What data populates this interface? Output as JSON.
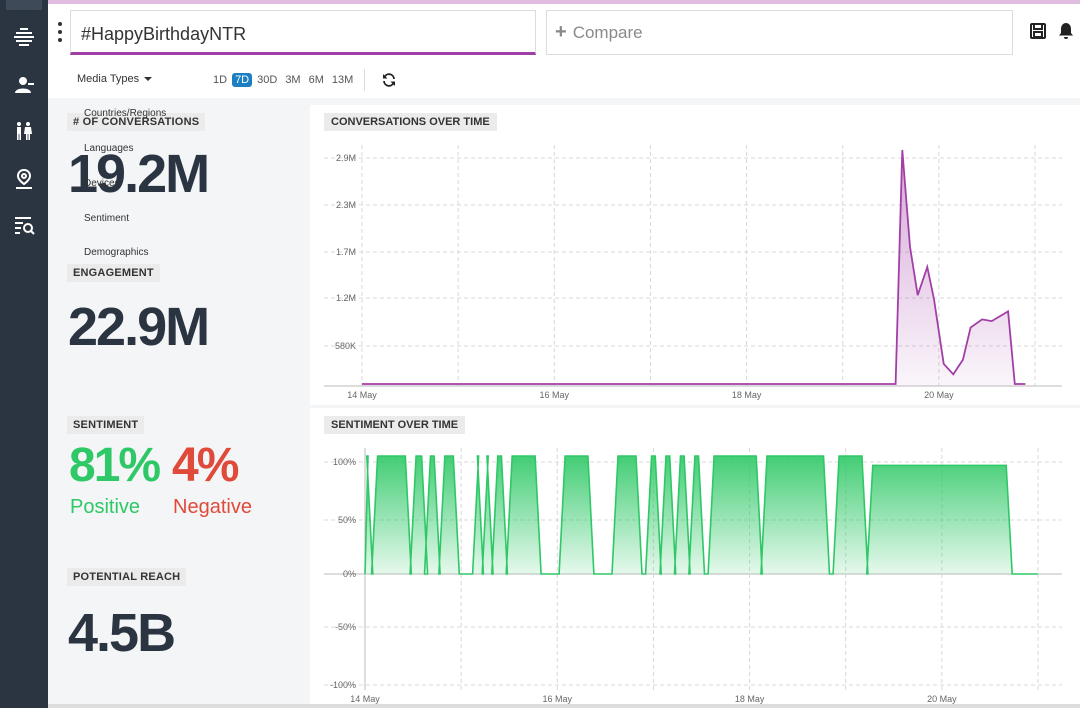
{
  "search": {
    "query": "#HappyBirthdayNTR"
  },
  "compare": {
    "label": "Compare"
  },
  "toolbar": {
    "media_types": "Media Types",
    "ranges": [
      "1D",
      "7D",
      "30D",
      "3M",
      "6M",
      "13M"
    ],
    "active_range": "7D"
  },
  "dropdown_options": [
    "Countries/Regions",
    "Languages",
    "Devices",
    "Sentiment",
    "Demographics"
  ],
  "stats": {
    "conversations": {
      "label": "# OF CONVERSATIONS",
      "value": "19.2M"
    },
    "engagement": {
      "label": "ENGAGEMENT",
      "value": "22.9M"
    },
    "sentiment": {
      "label": "SENTIMENT",
      "positive": "81%",
      "positive_label": "Positive",
      "negative": "4%",
      "negative_label": "Negative"
    },
    "reach": {
      "label": "POTENTIAL REACH",
      "value": "4.5B"
    }
  },
  "colors": {
    "accent": "#a23fa7",
    "positive": "#2ec866",
    "negative": "#e04a3a",
    "sidebar": "#2b3542",
    "active_range": "#1c7fc1"
  },
  "icons": [
    "logo-icon",
    "user-icon",
    "demographics-icon",
    "location-icon",
    "filter-search-icon",
    "save-icon",
    "bell-icon",
    "refresh-icon"
  ],
  "chart_data": [
    {
      "type": "area",
      "title": "CONVERSATIONS OVER TIME",
      "x_ticks": [
        "14 May",
        "16 May",
        "18 May",
        "20 May"
      ],
      "y_ticks": [
        "580K",
        "1.2M",
        "1.7M",
        "2.3M",
        "2.9M"
      ],
      "ylim": [
        0,
        2900000
      ],
      "series": [
        {
          "points": [
            [
              "14 May",
              0
            ],
            [
              "19 May 18:00",
              0
            ],
            [
              "19 May 20:00",
              2900000
            ],
            [
              "19 May 22:00",
              1700000
            ],
            [
              "20 May 00:00",
              1100000
            ],
            [
              "20 May 02:00",
              1400000
            ],
            [
              "20 May 04:00",
              1000000
            ],
            [
              "20 May 06:00",
              300000
            ],
            [
              "20 May 08:00",
              100000
            ],
            [
              "20 May 10:00",
              200000
            ],
            [
              "20 May 12:00",
              700000
            ],
            [
              "20 May 14:00",
              800000
            ],
            [
              "20 May 16:00",
              800000
            ],
            [
              "20 May 18:00",
              900000
            ],
            [
              "20 May 20:00",
              0
            ],
            [
              "20 May 22:00",
              0
            ]
          ]
        }
      ]
    },
    {
      "type": "area",
      "title": "SENTIMENT OVER TIME",
      "x_ticks": [
        "14 May",
        "16 May",
        "18 May",
        "20 May"
      ],
      "y_ticks": [
        "100%",
        "50%",
        "0%",
        "-50%",
        "-100%"
      ],
      "ylim": [
        -100,
        100
      ],
      "series": [
        {
          "description": "Net sentiment mostly 100% with frequent drops to 0% before 19 May; sustained ~90-100% from 19 May until data ends on 21 May."
        }
      ]
    }
  ]
}
